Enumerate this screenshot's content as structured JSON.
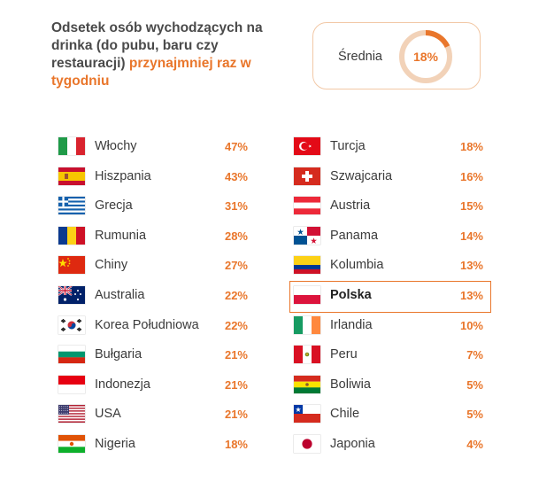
{
  "header": {
    "title_plain": "Odsetek osób wychodzących na drinka (do pubu, baru czy restauracji) ",
    "title_accent": "przynajmniej raz w tygodniu"
  },
  "average": {
    "label": "Średnia",
    "value_label": "18%",
    "value": 18
  },
  "colors": {
    "accent": "#e9762b",
    "ring_track": "#f2d2b8",
    "highlight_border": "#e9762b"
  },
  "chart_data": {
    "type": "table",
    "title": "Odsetek osób wychodzących na drinka (do pubu, baru czy restauracji) przynajmniej raz w tygodniu",
    "columns": [
      [
        {
          "country": "Włochy",
          "value": 47,
          "label": "47%",
          "flag": "italy-flag-icon"
        },
        {
          "country": "Hiszpania",
          "value": 43,
          "label": "43%",
          "flag": "spain-flag-icon"
        },
        {
          "country": "Grecja",
          "value": 31,
          "label": "31%",
          "flag": "greece-flag-icon"
        },
        {
          "country": "Rumunia",
          "value": 28,
          "label": "28%",
          "flag": "romania-flag-icon"
        },
        {
          "country": "Chiny",
          "value": 27,
          "label": "27%",
          "flag": "china-flag-icon"
        },
        {
          "country": "Australia",
          "value": 22,
          "label": "22%",
          "flag": "australia-flag-icon"
        },
        {
          "country": "Korea Południowa",
          "value": 22,
          "label": "22%",
          "flag": "south-korea-flag-icon"
        },
        {
          "country": "Bułgaria",
          "value": 21,
          "label": "21%",
          "flag": "bulgaria-flag-icon"
        },
        {
          "country": "Indonezja",
          "value": 21,
          "label": "21%",
          "flag": "indonesia-flag-icon"
        },
        {
          "country": "USA",
          "value": 21,
          "label": "21%",
          "flag": "usa-flag-icon"
        },
        {
          "country": "Nigeria",
          "value": 18,
          "label": "18%",
          "flag": "niger-flag-icon"
        }
      ],
      [
        {
          "country": "Turcja",
          "value": 18,
          "label": "18%",
          "flag": "turkey-flag-icon"
        },
        {
          "country": "Szwajcaria",
          "value": 16,
          "label": "16%",
          "flag": "switzerland-flag-icon"
        },
        {
          "country": "Austria",
          "value": 15,
          "label": "15%",
          "flag": "austria-flag-icon"
        },
        {
          "country": "Panama",
          "value": 14,
          "label": "14%",
          "flag": "panama-flag-icon"
        },
        {
          "country": "Kolumbia",
          "value": 13,
          "label": "13%",
          "flag": "colombia-flag-icon"
        },
        {
          "country": "Polska",
          "value": 13,
          "label": "13%",
          "flag": "poland-flag-icon",
          "highlight": true
        },
        {
          "country": "Irlandia",
          "value": 10,
          "label": "10%",
          "flag": "ireland-flag-icon"
        },
        {
          "country": "Peru",
          "value": 7,
          "label": "7%",
          "flag": "peru-flag-icon"
        },
        {
          "country": "Boliwia",
          "value": 5,
          "label": "5%",
          "flag": "bolivia-flag-icon"
        },
        {
          "country": "Chile",
          "value": 5,
          "label": "5%",
          "flag": "chile-flag-icon"
        },
        {
          "country": "Japonia",
          "value": 4,
          "label": "4%",
          "flag": "japan-flag-icon"
        }
      ]
    ]
  }
}
